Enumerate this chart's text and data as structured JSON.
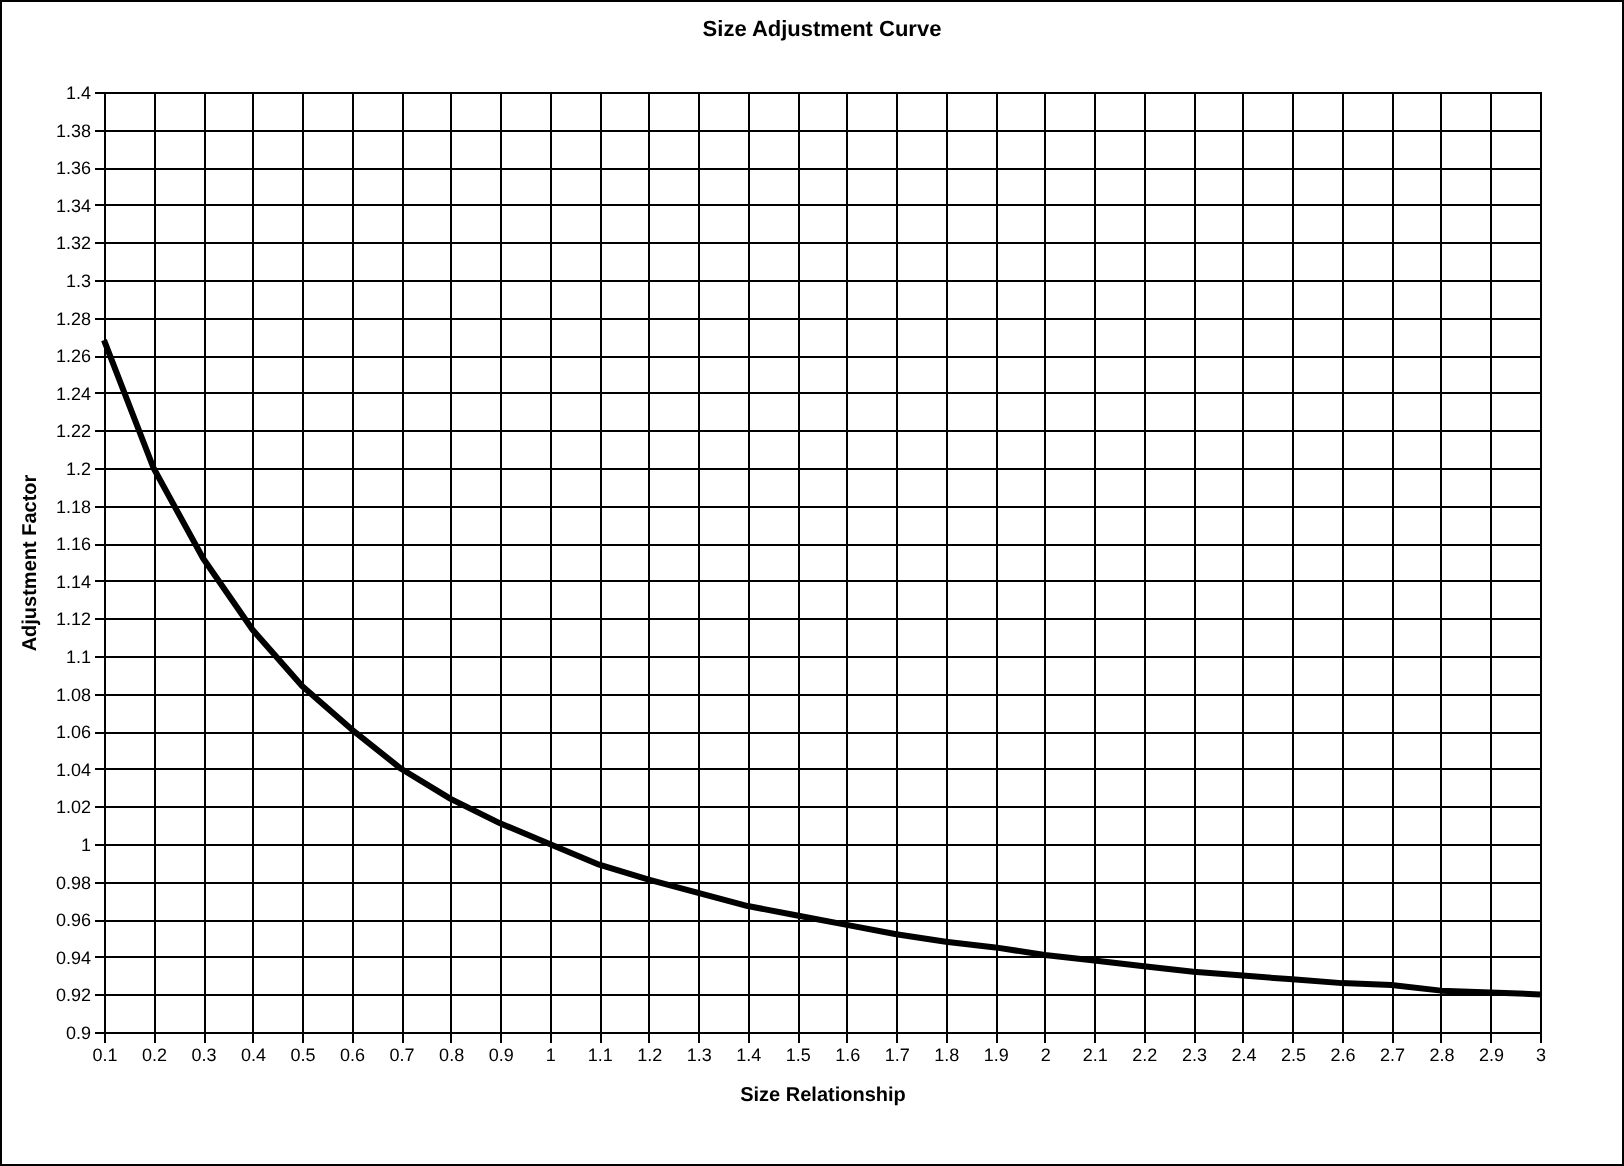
{
  "chart_data": {
    "type": "line",
    "title": "Size Adjustment Curve",
    "xlabel": "Size Relationship",
    "ylabel": "Adjustment Factor",
    "x": [
      0.1,
      0.2,
      0.3,
      0.4,
      0.5,
      0.6,
      0.7,
      0.8,
      0.9,
      1,
      1.1,
      1.2,
      1.3,
      1.4,
      1.5,
      1.6,
      1.7,
      1.8,
      1.9,
      2,
      2.1,
      2.2,
      2.3,
      2.4,
      2.5,
      2.6,
      2.7,
      2.8,
      2.9,
      3
    ],
    "series": [
      {
        "color": "#000000",
        "values": [
          1.268,
          1.2,
          1.152,
          1.114,
          1.084,
          1.061,
          1.04,
          1.024,
          1.011,
          1.0,
          0.989,
          0.981,
          0.974,
          0.967,
          0.962,
          0.957,
          0.952,
          0.948,
          0.945,
          0.941,
          0.938,
          0.935,
          0.932,
          0.93,
          0.928,
          0.926,
          0.925,
          0.922,
          0.921,
          0.92
        ]
      }
    ],
    "xlim": [
      0.1,
      3
    ],
    "xticks": [
      0.1,
      0.2,
      0.3,
      0.4,
      0.5,
      0.6,
      0.7,
      0.8,
      0.9,
      1,
      1.1,
      1.2,
      1.3,
      1.4,
      1.5,
      1.6,
      1.7,
      1.8,
      1.9,
      2,
      2.1,
      2.2,
      2.3,
      2.4,
      2.5,
      2.6,
      2.7,
      2.8,
      2.9,
      3
    ],
    "ylim": [
      0.9,
      1.4
    ],
    "yticks": [
      0.9,
      0.92,
      0.94,
      0.96,
      0.98,
      1,
      1.02,
      1.04,
      1.06,
      1.08,
      1.1,
      1.12,
      1.14,
      1.16,
      1.18,
      1.2,
      1.22,
      1.24,
      1.26,
      1.28,
      1.3,
      1.32,
      1.34,
      1.36,
      1.38,
      1.4
    ],
    "grid": true,
    "legend": false,
    "marker": "none",
    "line_style": "solid"
  }
}
